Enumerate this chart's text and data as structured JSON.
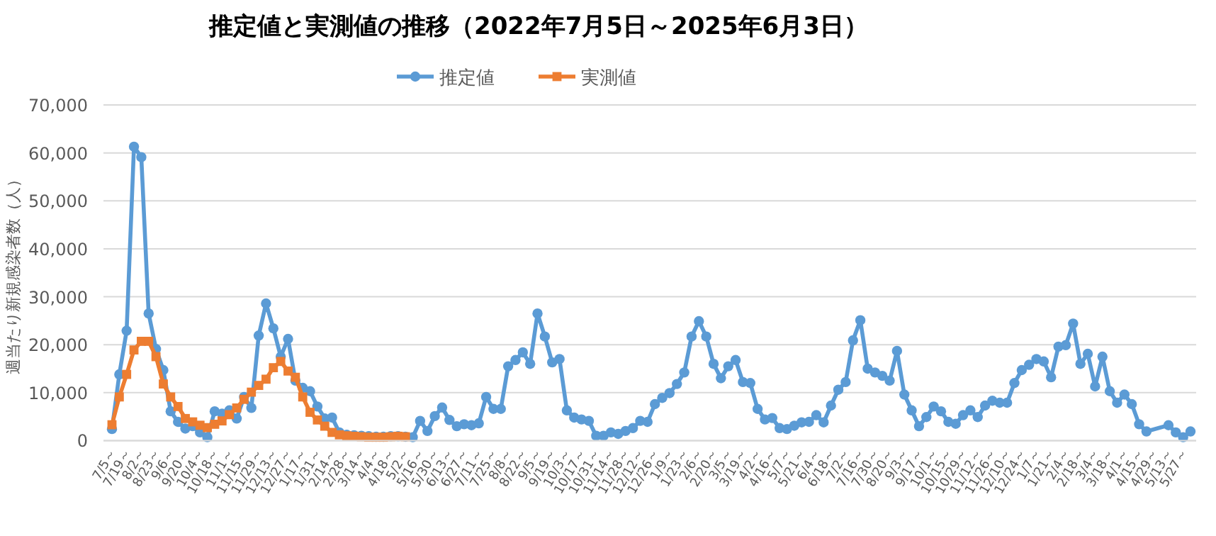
{
  "chart_data": {
    "type": "line",
    "title": "推定値と実測値の推移（2022年7月5日～2025年6月3日）",
    "ylabel": "週当たり新規感染者数（人）",
    "categories": [
      "7/5～",
      null,
      "7/19～",
      null,
      "8/2～",
      null,
      "8/23～",
      null,
      "9/6～",
      null,
      "9/20～",
      null,
      "10/4～",
      null,
      "10/18～",
      null,
      "11/1～",
      null,
      "11/15～",
      null,
      "11/29～",
      null,
      "12/13～",
      null,
      "12/27～",
      null,
      "1/17～",
      null,
      "1/31～",
      null,
      "2/14～",
      null,
      "2/28～",
      null,
      "3/14～",
      null,
      "4/4～",
      null,
      "4/18～",
      null,
      "5/2～",
      null,
      "5/16～",
      null,
      "5/30～",
      null,
      "6/13～",
      null,
      "6/27～",
      null,
      "7/11～",
      null,
      "7/25～",
      null,
      "8/8～",
      null,
      "8/22～",
      null,
      "9/5～",
      null,
      "9/19～",
      null,
      "10/3～",
      null,
      "10/17～",
      null,
      "10/31～",
      null,
      "11/14～",
      null,
      "11/28～",
      null,
      "12/12～",
      null,
      "12/26～",
      null,
      "1/9～",
      null,
      "1/23～",
      null,
      "2/6～",
      null,
      "2/20～",
      null,
      "3/5～",
      null,
      "3/19～",
      null,
      "4/2～",
      null,
      "4/16～",
      null,
      "5/7～",
      null,
      "5/21～",
      null,
      "6/4～",
      null,
      "6/18～",
      null,
      "7/2～",
      null,
      "7/16～",
      null,
      "7/30～",
      null,
      "8/20～",
      null,
      "9/3～",
      null,
      "9/17～",
      null,
      "10/1～",
      null,
      "10/15～",
      null,
      "10/29～",
      null,
      "11/12～",
      null,
      "11/26～",
      null,
      "12/10～",
      null,
      "12/24～",
      null,
      "1/7～",
      null,
      "1/21～",
      null,
      "2/4～",
      null,
      "2/18～",
      null,
      "3/4～",
      null,
      "3/18～",
      null,
      "4/1～",
      null,
      "4/15～",
      null,
      "4/29～",
      null,
      "5/13～",
      null,
      "5/27～",
      null
    ],
    "series": [
      {
        "name": "推定値",
        "color": "#5b9bd5",
        "marker": "circle",
        "values": [
          2400,
          13800,
          22900,
          61300,
          59100,
          26500,
          19100,
          14700,
          6100,
          3900,
          2500,
          3000,
          1700,
          700,
          6100,
          5600,
          6300,
          4600,
          9100,
          6800,
          21900,
          28600,
          23400,
          17500,
          21200,
          12500,
          11000,
          10300,
          7100,
          4600,
          4800,
          1700,
          1200,
          1100,
          1000,
          900,
          800,
          800,
          900,
          900,
          800,
          700,
          4100,
          2000,
          5100,
          6900,
          4300,
          3000,
          3400,
          3200,
          3600,
          9100,
          6600,
          6600,
          15500,
          16800,
          18400,
          16000,
          26500,
          21700,
          16300,
          17000,
          6300,
          4800,
          4400,
          4100,
          1000,
          1000,
          1700,
          1400,
          2000,
          2600,
          4100,
          3900,
          7600,
          8900,
          9900,
          11800,
          14200,
          21700,
          24900,
          21700,
          16000,
          13000,
          15500,
          16800,
          12200,
          12000,
          6600,
          4400,
          4700,
          2600,
          2400,
          3100,
          3800,
          3900,
          5300,
          3800,
          7300,
          10600,
          12200,
          20900,
          25100,
          15000,
          14200,
          13500,
          12500,
          18700,
          9600,
          6300,
          3000,
          4900,
          7100,
          6100,
          3900,
          3500,
          5300,
          6300,
          4900,
          7300,
          8300,
          7900,
          7900,
          12000,
          14700,
          15800,
          17000,
          16500,
          13200,
          19600,
          19900,
          24400,
          16000,
          18100,
          11300,
          17500,
          10300,
          7900,
          9600,
          7600,
          3400,
          1900,
          null,
          null,
          3200,
          1700,
          700,
          1900
        ]
      },
      {
        "name": "実測値",
        "color": "#ed7d31",
        "marker": "square",
        "values": [
          3300,
          9100,
          13800,
          18900,
          20700,
          20700,
          17500,
          11800,
          9100,
          7100,
          4600,
          3900,
          3200,
          2700,
          3400,
          4100,
          5400,
          6800,
          8600,
          10100,
          11500,
          12800,
          15200,
          16500,
          14500,
          13200,
          9100,
          5900,
          4300,
          3000,
          1700,
          1200,
          1000,
          900,
          800,
          700,
          700,
          700,
          800,
          900,
          800,
          null,
          null,
          null,
          null,
          null,
          null,
          null,
          null,
          null,
          null,
          null,
          null,
          null,
          null,
          null,
          null,
          null,
          null,
          null,
          null,
          null,
          null,
          null,
          null,
          null,
          null,
          null,
          null,
          null,
          null,
          null,
          null,
          null,
          null,
          null,
          null,
          null,
          null,
          null,
          null,
          null,
          null,
          null,
          null,
          null,
          null,
          null,
          null,
          null,
          null,
          null,
          null,
          null,
          null,
          null,
          null,
          null,
          null,
          null,
          null,
          null,
          null,
          null,
          null,
          null,
          null,
          null,
          null,
          null,
          null,
          null,
          null,
          null,
          null,
          null,
          null,
          null,
          null,
          null,
          null,
          null,
          null,
          null,
          null,
          null,
          null,
          null,
          null,
          null,
          null,
          null,
          null,
          null,
          null,
          null,
          null,
          null,
          null,
          null,
          null,
          null,
          null,
          null,
          null,
          null,
          null,
          null
        ]
      }
    ],
    "ylim": [
      0,
      70000
    ],
    "yticks": [
      0,
      {
        "value": 10000,
        "label": "10,000"
      },
      {
        "value": 20000,
        "label": "20,000"
      },
      {
        "value": 30000,
        "label": "30,000"
      },
      {
        "value": 40000,
        "label": "40,000"
      },
      {
        "value": 50000,
        "label": "50,000"
      },
      {
        "value": 60000,
        "label": "60,000"
      },
      {
        "value": 70000,
        "label": "70,000"
      }
    ],
    "grid": "y",
    "legend": "top"
  }
}
